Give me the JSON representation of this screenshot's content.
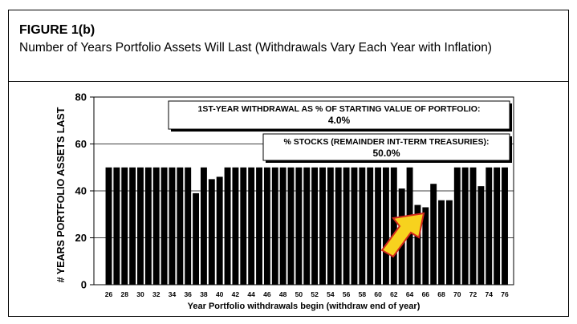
{
  "figure": {
    "label": "FIGURE 1(b)",
    "title": "Number of Years Portfolio Assets Will Last (Withdrawals Vary Each Year with Inflation)"
  },
  "chart_data": {
    "type": "bar",
    "xlabel": "Year Portfolio withdrawals begin (withdraw end of year)",
    "ylabel": "# YEARS PORTFOLIO ASSETS LAST",
    "ylim": [
      0,
      80
    ],
    "yticks": [
      0,
      20,
      40,
      60,
      80
    ],
    "xtick_labels": [
      "26",
      "28",
      "30",
      "32",
      "34",
      "36",
      "38",
      "40",
      "42",
      "44",
      "46",
      "48",
      "50",
      "52",
      "54",
      "56",
      "58",
      "60",
      "62",
      "64",
      "66",
      "68",
      "70",
      "72",
      "74",
      "76"
    ],
    "categories": [
      26,
      27,
      28,
      29,
      30,
      31,
      32,
      33,
      34,
      35,
      36,
      37,
      38,
      39,
      40,
      41,
      42,
      43,
      44,
      45,
      46,
      47,
      48,
      49,
      50,
      51,
      52,
      53,
      54,
      55,
      56,
      57,
      58,
      59,
      60,
      61,
      62,
      63,
      64,
      65,
      66,
      67,
      68,
      69,
      70,
      71,
      72,
      73,
      74,
      75,
      76
    ],
    "values": [
      50,
      50,
      50,
      50,
      50,
      50,
      50,
      50,
      50,
      50,
      50,
      39,
      50,
      45,
      46,
      50,
      50,
      50,
      50,
      50,
      50,
      50,
      50,
      50,
      50,
      50,
      50,
      50,
      50,
      50,
      50,
      50,
      50,
      50,
      50,
      50,
      50,
      41,
      50,
      34,
      33,
      43,
      36,
      36,
      50,
      50,
      50,
      42,
      50,
      50,
      50
    ],
    "bar_color": "#000000",
    "grid": true,
    "annotations": [
      {
        "line1": "1ST-YEAR WITHDRAWAL AS % OF STARTING VALUE OF PORTFOLIO:",
        "line2": "4.0%"
      },
      {
        "line1": "% STOCKS (REMAINDER INT-TERM TREASURIES):",
        "line2": "50.0%"
      }
    ],
    "arrow_color": "#f7d21e",
    "arrow_outline": "#d42a1e"
  }
}
